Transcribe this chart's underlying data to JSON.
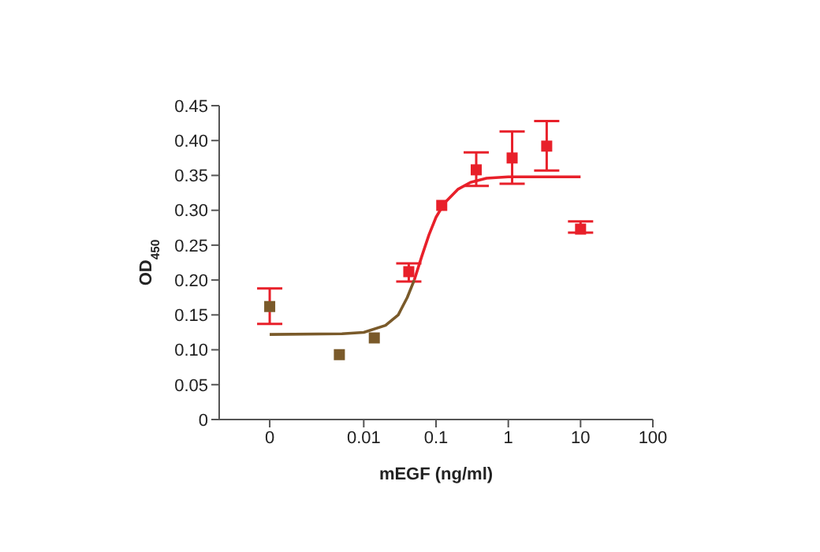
{
  "chart_data": {
    "type": "scatter",
    "xlabel": "mEGF (ng/ml)",
    "ylabel": "OD$_{450}$",
    "log": "x",
    "marker": "square",
    "grid": false,
    "xlim": [
      0.0001,
      100
    ],
    "xticks": [
      {
        "value": 0.0005,
        "label": "0"
      },
      0.01,
      0.1,
      1,
      10,
      100
    ],
    "ylim": [
      0,
      0.45
    ],
    "yticks": [
      0,
      0.05,
      {
        "value": 0.1,
        "label": "0.10"
      },
      0.15,
      {
        "value": 0.2,
        "label": "0.20"
      },
      0.25,
      {
        "value": 0.3,
        "label": "0.30"
      },
      0.35,
      {
        "value": 0.4,
        "label": "0.40"
      },
      0.45
    ],
    "series": [
      {
        "color": "#e8202a",
        "colors": [
          "#7a5a2a",
          "#7a5a2a",
          "#7a5a2a",
          "#e8202a",
          "#e8202a",
          "#e8202a",
          "#e8202a",
          "#e8202a",
          "#e8202a"
        ],
        "x": [
          0.0005,
          0.0046,
          0.014,
          0.042,
          0.12,
          0.36,
          1.13,
          3.4,
          10
        ],
        "values": [
          0.162,
          0.093,
          0.117,
          0.212,
          0.307,
          0.358,
          0.375,
          0.392,
          0.273
        ],
        "errors": [
          [
            0.137,
            0.188
          ],
          null,
          null,
          [
            0.198,
            0.224
          ],
          null,
          [
            0.335,
            0.383
          ],
          [
            0.338,
            0.413
          ],
          [
            0.357,
            0.428
          ],
          [
            0.268,
            0.284
          ]
        ]
      },
      {
        "type": "line",
        "color": "#7a5a2a",
        "marker": "none",
        "x": [
          0.0005,
          0.005,
          0.01,
          0.02,
          0.03,
          0.04,
          0.05
        ],
        "values": [
          0.122,
          0.123,
          0.125,
          0.135,
          0.15,
          0.175,
          0.2
        ]
      },
      {
        "type": "line",
        "color": "#e8202a",
        "marker": "none",
        "x": [
          0.05,
          0.064,
          0.08,
          0.1,
          0.13,
          0.2,
          0.3,
          0.5,
          1,
          10
        ],
        "values": [
          0.2,
          0.235,
          0.265,
          0.29,
          0.31,
          0.33,
          0.34,
          0.346,
          0.348,
          0.348
        ]
      }
    ]
  }
}
